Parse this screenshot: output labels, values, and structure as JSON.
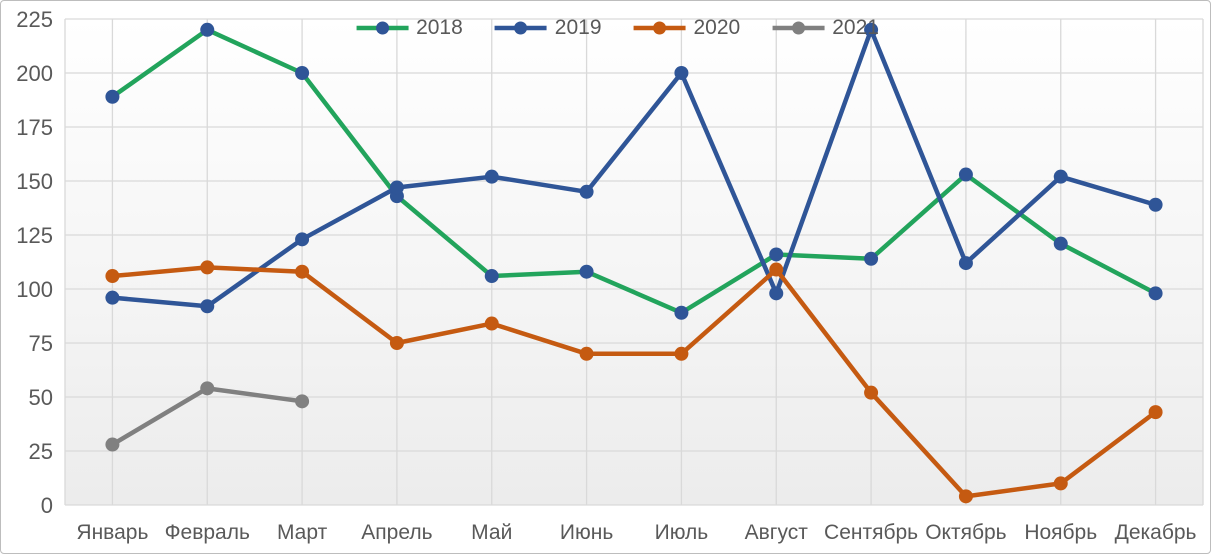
{
  "chart_data": {
    "type": "line",
    "title": "",
    "xlabel": "",
    "ylabel": "",
    "categories": [
      "Январь",
      "Февраль",
      "Март",
      "Апрель",
      "Май",
      "Июнь",
      "Июль",
      "Август",
      "Сентябрь",
      "Октябрь",
      "Ноябрь",
      "Декабрь"
    ],
    "series": [
      {
        "name": "2018",
        "color": "#22A45C",
        "marker_color": "#2F5597",
        "values": [
          189,
          220,
          200,
          143,
          106,
          108,
          89,
          116,
          114,
          153,
          121,
          98
        ]
      },
      {
        "name": "2019",
        "color": "#2F5597",
        "marker_color": "#2F5597",
        "values": [
          96,
          92,
          123,
          147,
          152,
          145,
          200,
          98,
          220,
          112,
          152,
          139
        ]
      },
      {
        "name": "2020",
        "color": "#C55A11",
        "marker_color": "#C55A11",
        "values": [
          106,
          110,
          108,
          75,
          84,
          70,
          70,
          109,
          52,
          4,
          10,
          43
        ]
      },
      {
        "name": "2021",
        "color": "#808080",
        "marker_color": "#808080",
        "values": [
          28,
          54,
          48,
          null,
          null,
          null,
          null,
          null,
          null,
          null,
          null,
          null
        ]
      }
    ],
    "ylim": [
      0,
      225
    ],
    "yticks": [
      0,
      25,
      50,
      75,
      100,
      125,
      150,
      175,
      200,
      225
    ],
    "grid": true,
    "legend_position": "top-center",
    "colors": {
      "gridline": "#D9D9D9",
      "axis_text": "#595959",
      "plot_bg_top": "#FFFFFF",
      "plot_bg_bottom": "#ECECEC",
      "frame_border": "#BDBDBD"
    }
  }
}
